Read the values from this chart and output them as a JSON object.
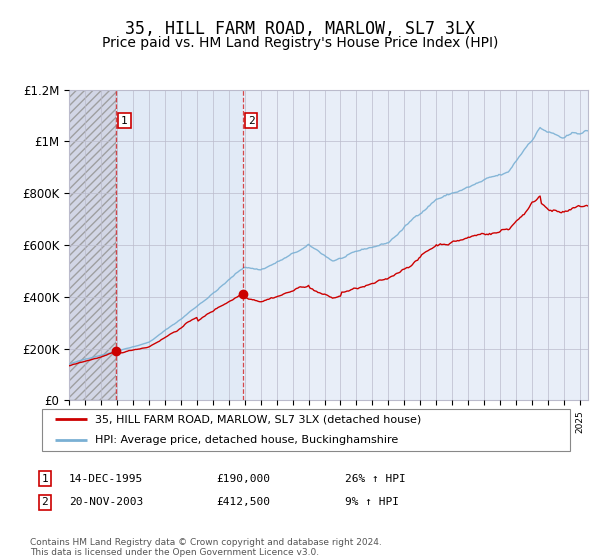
{
  "title": "35, HILL FARM ROAD, MARLOW, SL7 3LX",
  "subtitle": "Price paid vs. HM Land Registry's House Price Index (HPI)",
  "ylim": [
    0,
    1200000
  ],
  "yticks": [
    0,
    200000,
    400000,
    600000,
    800000,
    1000000,
    1200000
  ],
  "ytick_labels": [
    "£0",
    "£200K",
    "£400K",
    "£600K",
    "£800K",
    "£1M",
    "£1.2M"
  ],
  "sale1_year": 1995.96,
  "sale1_price": 190000,
  "sale2_year": 2003.9,
  "sale2_price": 412500,
  "red_line_color": "#cc0000",
  "blue_line_color": "#7ab0d4",
  "background_color": "#ffffff",
  "plot_bg_color": "#e8eef8",
  "grid_color": "#bbbbcc",
  "title_fontsize": 12,
  "subtitle_fontsize": 10,
  "legend_label_red": "35, HILL FARM ROAD, MARLOW, SL7 3LX (detached house)",
  "legend_label_blue": "HPI: Average price, detached house, Buckinghamshire",
  "table_row1": [
    "1",
    "14-DEC-1995",
    "£190,000",
    "26% ↑ HPI"
  ],
  "table_row2": [
    "2",
    "20-NOV-2003",
    "£412,500",
    "9% ↑ HPI"
  ],
  "footer": "Contains HM Land Registry data © Crown copyright and database right 2024.\nThis data is licensed under the Open Government Licence v3.0.",
  "xmin": 1993,
  "xmax": 2025.5
}
